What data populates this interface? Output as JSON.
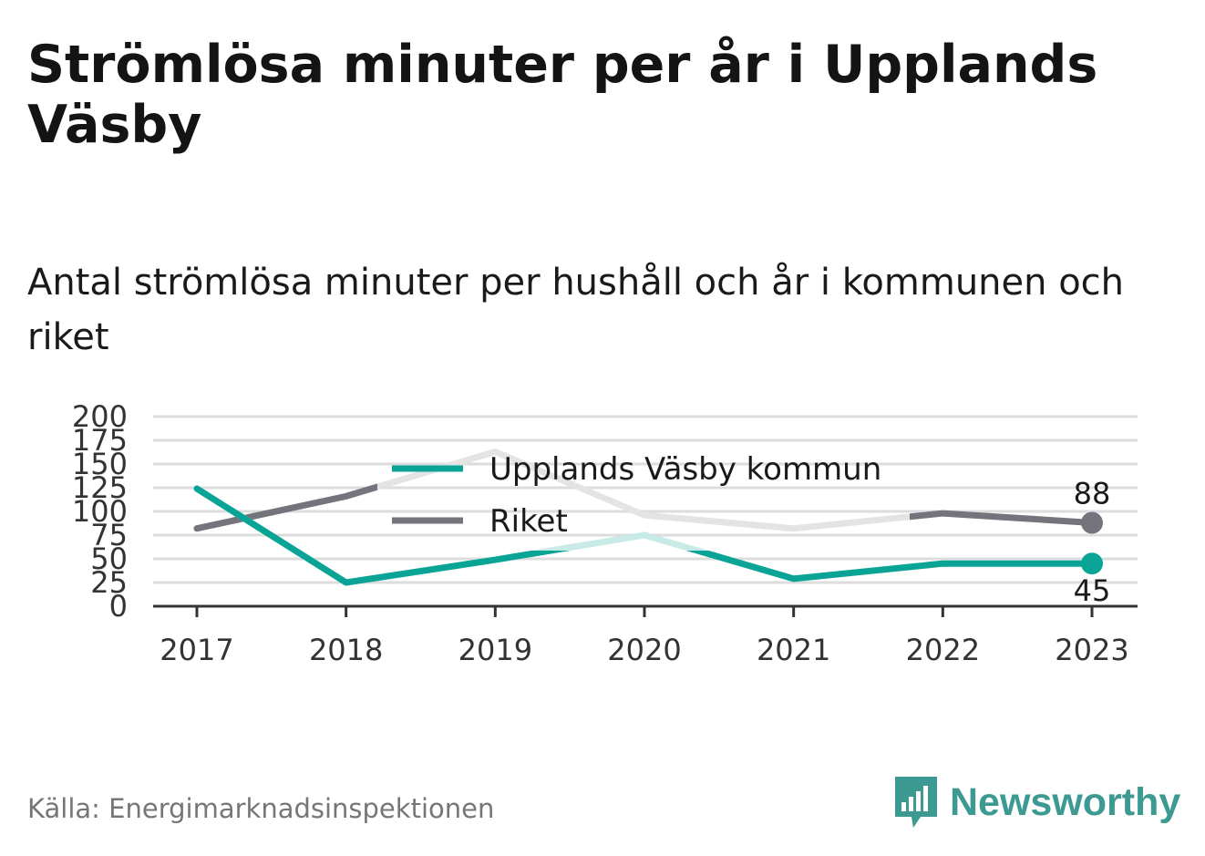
{
  "title": "Strömlösa minuter per år i Upplands Väsby",
  "subtitle": "Antal strömlösa minuter per hushåll och år i kommunen och riket",
  "source": "Källa: Energimarknadsinspektionen",
  "brand": {
    "name": "Newsworthy",
    "icon": "newsworthy-logo-icon",
    "color": "#3d9a92"
  },
  "colors": {
    "kommun": "#0aa496",
    "kommun_faded": "#c8ebe8",
    "riket": "#74747c",
    "riket_faded": "#e4e4e4",
    "grid": "#dddddd",
    "axis": "#333333"
  },
  "chart_data": {
    "type": "line",
    "x": [
      "2017",
      "2018",
      "2019",
      "2020",
      "2021",
      "2022",
      "2023"
    ],
    "ylim": [
      0,
      200
    ],
    "yticks": [
      "0",
      "25",
      "50",
      "75",
      "100",
      "125",
      "150",
      "175",
      "200"
    ],
    "grid": true,
    "legend_position": "top-center",
    "series": [
      {
        "name": "Upplands Väsby kommun",
        "values": [
          124,
          25,
          49,
          75,
          29,
          45,
          45
        ],
        "end_label": "45"
      },
      {
        "name": "Riket",
        "values": [
          82,
          116,
          163,
          96,
          82,
          98,
          88
        ],
        "end_label": "88"
      }
    ]
  }
}
